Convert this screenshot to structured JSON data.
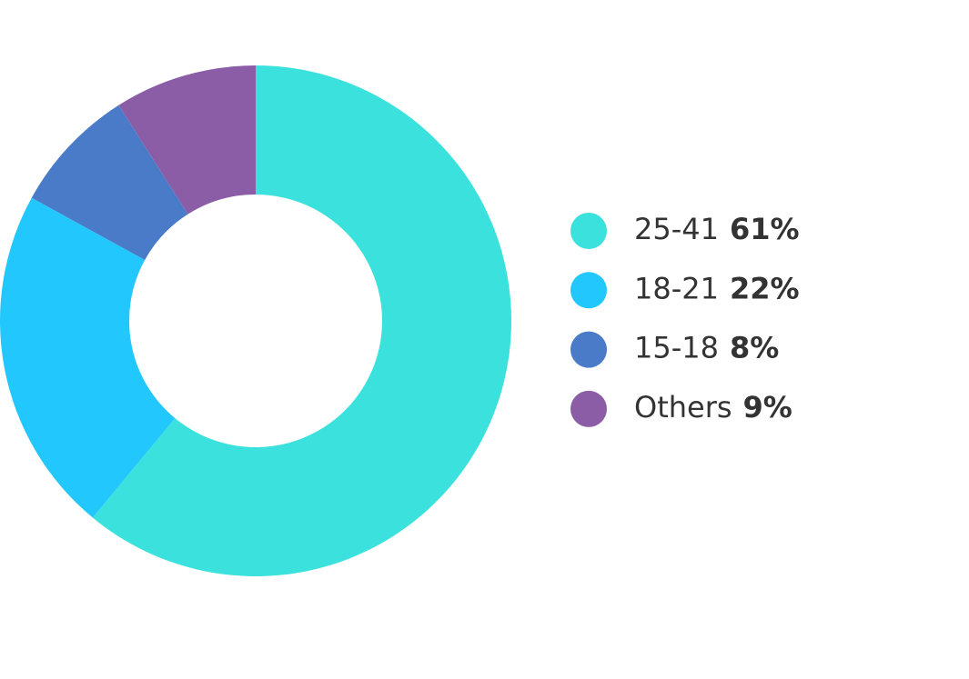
{
  "chart_data": {
    "type": "donut",
    "categories": [
      "25-41",
      "18-21",
      "15-18",
      "Others"
    ],
    "values": [
      61,
      22,
      8,
      9
    ],
    "value_labels": [
      "61%",
      "22%",
      "8%",
      "9%"
    ],
    "colors": [
      "#3ae1dd",
      "#22c7fd",
      "#4a7bc9",
      "#8a5da6"
    ],
    "legend": "right"
  }
}
